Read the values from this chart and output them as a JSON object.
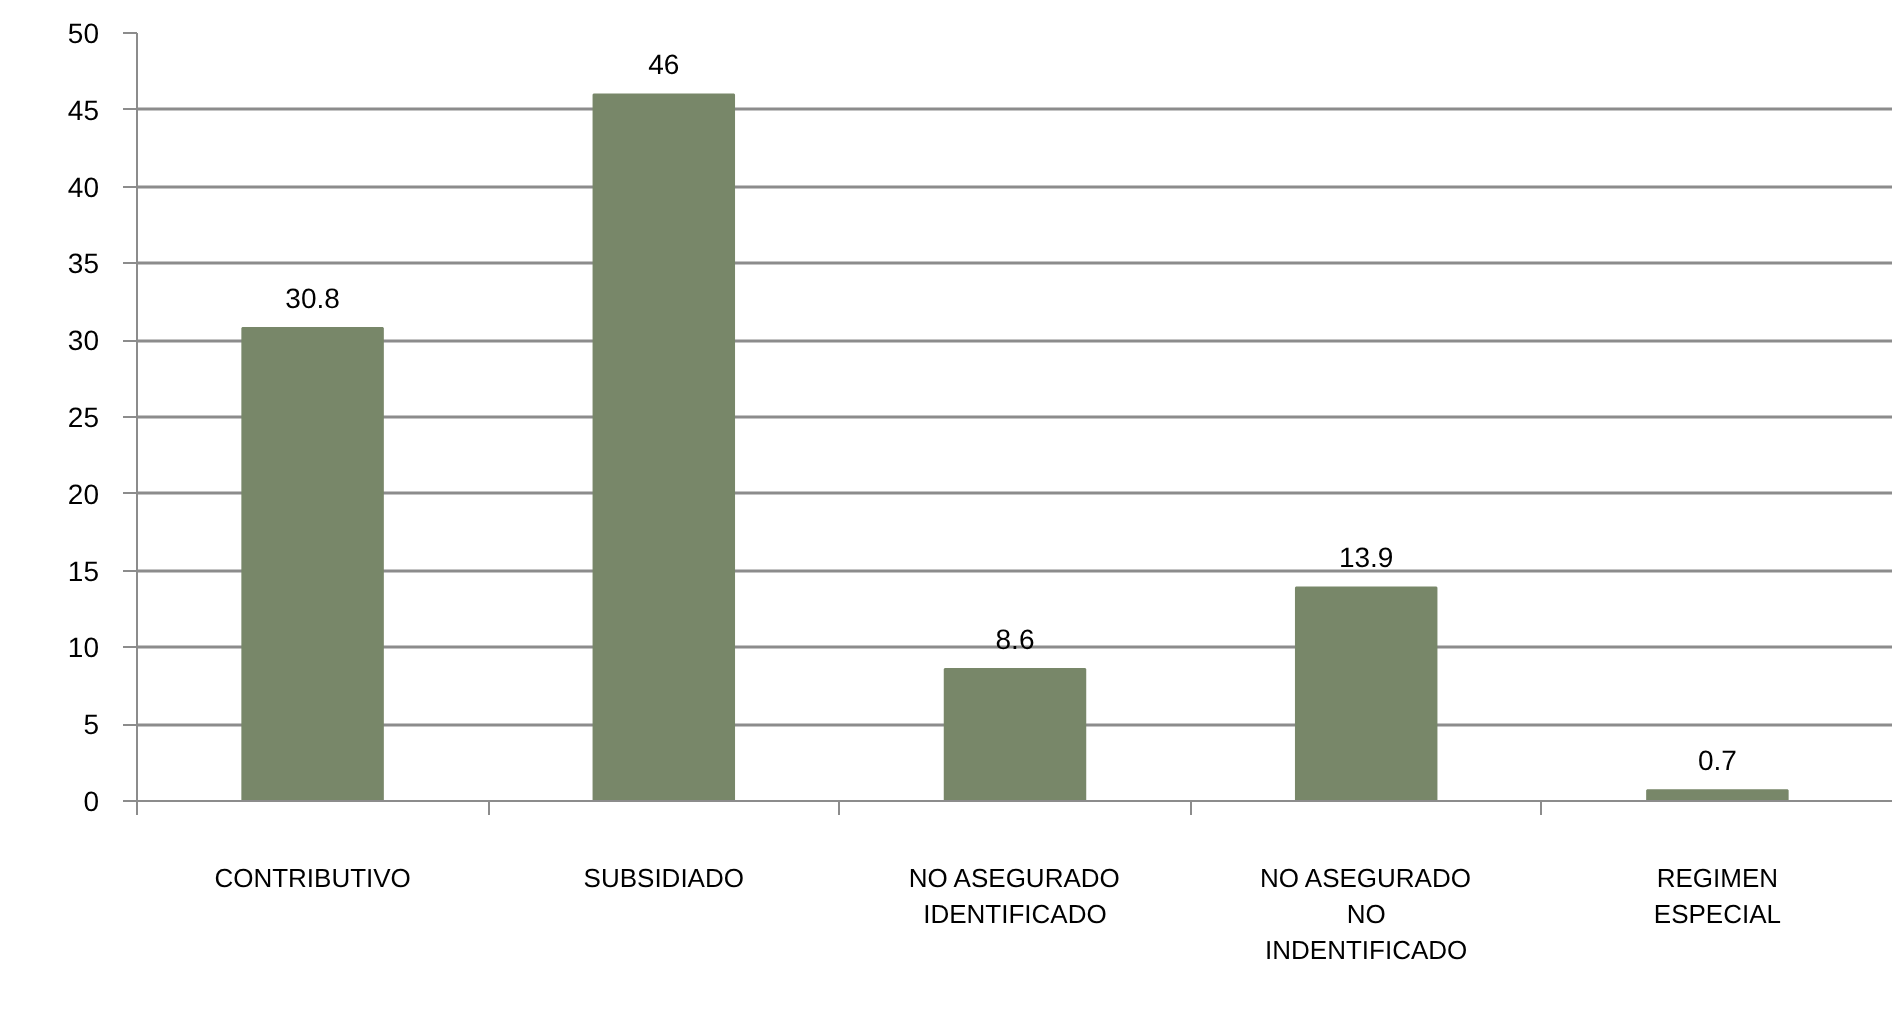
{
  "chart_data": {
    "type": "bar",
    "categories": [
      "CONTRIBUTIVO",
      "SUBSIDIADO",
      "NO ASEGURADO\nIDENTIFICADO",
      "NO ASEGURADO\nNO\nINDENTIFICADO",
      "REGIMEN\nESPECIAL"
    ],
    "values": [
      30.8,
      46,
      8.6,
      13.9,
      0.7
    ],
    "color": "#788769",
    "ylim": [
      0,
      50
    ],
    "yticks": [
      0,
      5,
      10,
      15,
      20,
      25,
      30,
      35,
      40,
      45,
      50
    ],
    "grid": "y",
    "data_labels": true
  }
}
